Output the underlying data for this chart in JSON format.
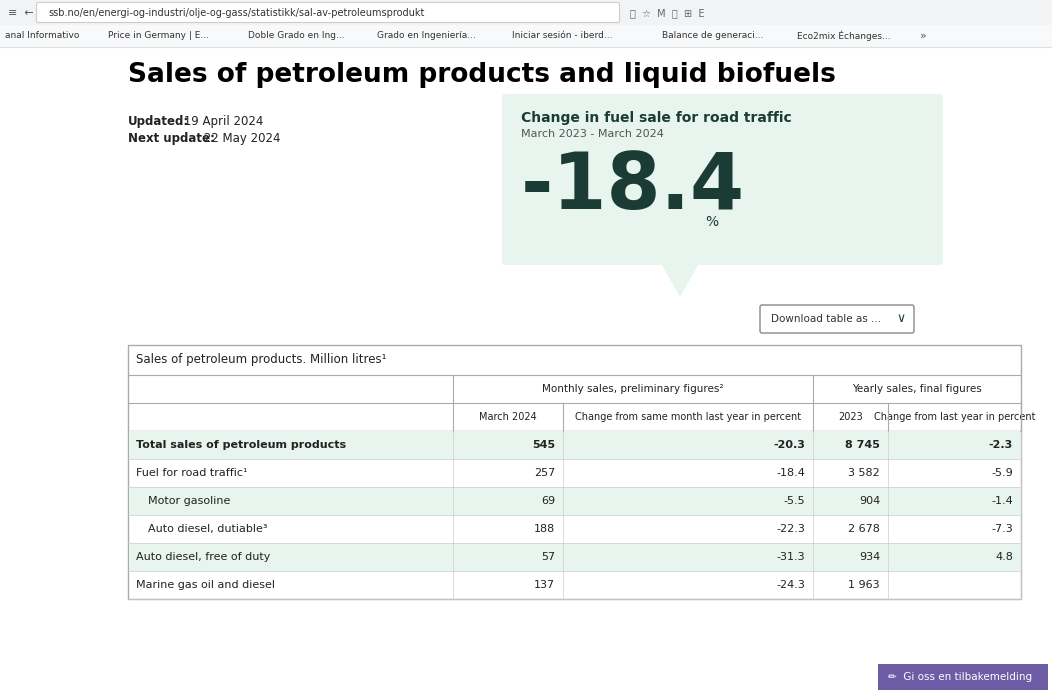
{
  "page_title": "Sales of petroleum products and liquid biofuels",
  "updated_label": "Updated:",
  "updated_value": " 19 April 2024",
  "next_update_label": "Next update:",
  "next_update_value": " 22 May 2024",
  "bubble_title": "Change in fuel sale for road traffic",
  "bubble_subtitle": "March 2023 - March 2024",
  "bubble_value": "-18.4",
  "bubble_unit": "%",
  "bubble_bg_color": "#e8f5ee",
  "bubble_text_color": "#1a3c34",
  "download_btn_text": "Download table as ...",
  "table_title": "Sales of petroleum products. Million litres¹",
  "col_headers_monthly": "Monthly sales, preliminary figures²",
  "col_headers_yearly": "Yearly sales, final figures",
  "col_sub1": "March 2024",
  "col_sub2": "Change from same month last year in percent",
  "col_sub3": "2023",
  "col_sub4": "Change from last year in percent",
  "rows": [
    {
      "name": "Total sales of petroleum products",
      "bold": true,
      "indent": false,
      "march2024": "545",
      "change_monthly": "-20.3",
      "yearly2023": "8 745",
      "change_yearly": "-2.3",
      "green_bg": true
    },
    {
      "name": "Fuel for road traffic¹",
      "bold": false,
      "indent": false,
      "march2024": "257",
      "change_monthly": "-18.4",
      "yearly2023": "3 582",
      "change_yearly": "-5.9",
      "green_bg": false
    },
    {
      "name": "Motor gasoline",
      "bold": false,
      "indent": true,
      "march2024": "69",
      "change_monthly": "-5.5",
      "yearly2023": "904",
      "change_yearly": "-1.4",
      "green_bg": true
    },
    {
      "name": "Auto diesel, dutiable³",
      "bold": false,
      "indent": true,
      "march2024": "188",
      "change_monthly": "-22.3",
      "yearly2023": "2 678",
      "change_yearly": "-7.3",
      "green_bg": false
    },
    {
      "name": "Auto diesel, free of duty",
      "bold": false,
      "indent": false,
      "march2024": "57",
      "change_monthly": "-31.3",
      "yearly2023": "934",
      "change_yearly": "4.8",
      "green_bg": true
    },
    {
      "name": "Marine gas oil and diesel",
      "bold": false,
      "indent": false,
      "march2024": "137",
      "change_monthly": "-24.3",
      "yearly2023": "1 963",
      "change_yearly": "",
      "green_bg": false
    }
  ],
  "bg_color": "#ffffff",
  "table_bg_green": "#e8f5ee",
  "title_color": "#1a3c34",
  "text_color": "#222222",
  "browser_url": "ssb.no/en/energi-og-industri/olje-og-gass/statistikk/sal-av-petroleumsprodukt",
  "bookmarks": [
    "anal Informativo",
    "Price in Germany | E...",
    "Doble Grado en Ing...",
    "Grado en Ingeniería...",
    "Iniciar sesión - iberd...",
    "Balance de generaci...",
    "Eco2mix Échanges..."
  ]
}
